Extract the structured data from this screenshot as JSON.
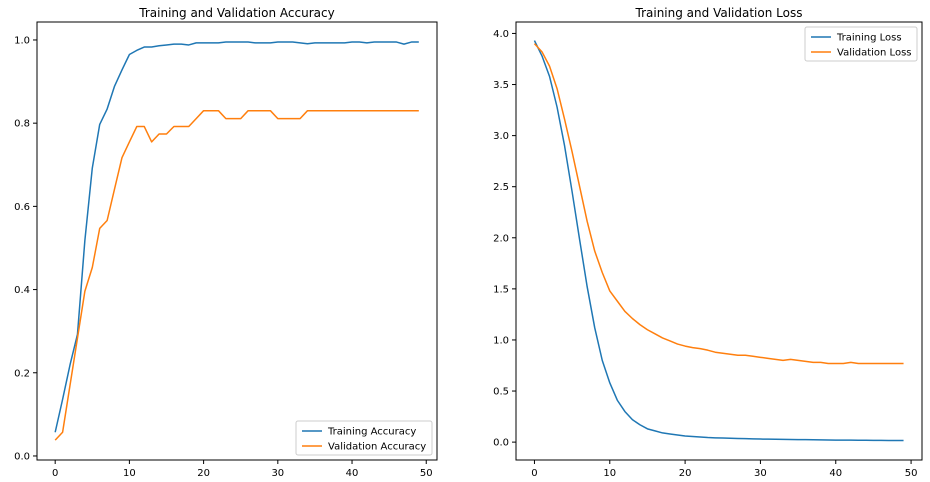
{
  "chart_data": [
    {
      "type": "line",
      "title": "Training and Validation Accuracy",
      "xlabel": "",
      "ylabel": "",
      "xlim": [
        -2.45,
        51.45
      ],
      "ylim": [
        -0.0097,
        1.0432
      ],
      "xticks": [
        0,
        10,
        20,
        30,
        40,
        50
      ],
      "yticks": [
        0.0,
        0.2,
        0.4,
        0.6,
        0.8,
        1.0
      ],
      "ytick_labels": [
        "0.0",
        "0.2",
        "0.4",
        "0.6",
        "0.8",
        "1.0"
      ],
      "grid": false,
      "legend_position": "lower-right",
      "x": [
        0,
        1,
        2,
        3,
        4,
        5,
        6,
        7,
        8,
        9,
        10,
        11,
        12,
        13,
        14,
        15,
        16,
        17,
        18,
        19,
        20,
        21,
        22,
        23,
        24,
        25,
        26,
        27,
        28,
        29,
        30,
        31,
        32,
        33,
        34,
        35,
        36,
        37,
        38,
        39,
        40,
        41,
        42,
        43,
        44,
        45,
        46,
        47,
        48,
        49
      ],
      "series": [
        {
          "name": "Training Accuracy",
          "color": "#1f77b4",
          "values": [
            0.057,
            0.136,
            0.219,
            0.292,
            0.518,
            0.692,
            0.797,
            0.834,
            0.889,
            0.928,
            0.965,
            0.975,
            0.983,
            0.983,
            0.986,
            0.988,
            0.99,
            0.99,
            0.988,
            0.993,
            0.993,
            0.993,
            0.993,
            0.995,
            0.995,
            0.995,
            0.995,
            0.993,
            0.993,
            0.993,
            0.995,
            0.995,
            0.995,
            0.993,
            0.991,
            0.993,
            0.993,
            0.993,
            0.993,
            0.993,
            0.995,
            0.995,
            0.993,
            0.995,
            0.995,
            0.995,
            0.995,
            0.99,
            0.995,
            0.995
          ]
        },
        {
          "name": "Validation Accuracy",
          "color": "#ff7f0e",
          "values": [
            0.038,
            0.057,
            0.17,
            0.283,
            0.396,
            0.453,
            0.547,
            0.566,
            0.642,
            0.717,
            0.755,
            0.792,
            0.792,
            0.755,
            0.774,
            0.774,
            0.792,
            0.792,
            0.792,
            0.811,
            0.83,
            0.83,
            0.83,
            0.811,
            0.811,
            0.811,
            0.83,
            0.83,
            0.83,
            0.83,
            0.811,
            0.811,
            0.811,
            0.811,
            0.83,
            0.83,
            0.83,
            0.83,
            0.83,
            0.83,
            0.83,
            0.83,
            0.83,
            0.83,
            0.83,
            0.83,
            0.83,
            0.83,
            0.83,
            0.83
          ]
        }
      ]
    },
    {
      "type": "line",
      "title": "Training and Validation Loss",
      "xlabel": "",
      "ylabel": "",
      "xlim": [
        -2.45,
        51.45
      ],
      "ylim": [
        -0.175,
        4.112
      ],
      "xticks": [
        0,
        10,
        20,
        30,
        40,
        50
      ],
      "yticks": [
        0.0,
        0.5,
        1.0,
        1.5,
        2.0,
        2.5,
        3.0,
        3.5,
        4.0
      ],
      "ytick_labels": [
        "0.0",
        "0.5",
        "1.0",
        "1.5",
        "2.0",
        "2.5",
        "3.0",
        "3.5",
        "4.0"
      ],
      "grid": false,
      "legend_position": "upper-right",
      "x": [
        0,
        1,
        2,
        3,
        4,
        5,
        6,
        7,
        8,
        9,
        10,
        11,
        12,
        13,
        14,
        15,
        16,
        17,
        18,
        19,
        20,
        21,
        22,
        23,
        24,
        25,
        26,
        27,
        28,
        29,
        30,
        31,
        32,
        33,
        34,
        35,
        36,
        37,
        38,
        39,
        40,
        41,
        42,
        43,
        44,
        45,
        46,
        47,
        48,
        49
      ],
      "series": [
        {
          "name": "Training Loss",
          "color": "#1f77b4",
          "values": [
            3.93,
            3.78,
            3.58,
            3.28,
            2.9,
            2.45,
            1.98,
            1.52,
            1.12,
            0.8,
            0.58,
            0.41,
            0.3,
            0.22,
            0.17,
            0.13,
            0.11,
            0.09,
            0.08,
            0.07,
            0.06,
            0.055,
            0.05,
            0.045,
            0.042,
            0.04,
            0.038,
            0.036,
            0.034,
            0.032,
            0.03,
            0.029,
            0.028,
            0.027,
            0.026,
            0.025,
            0.024,
            0.023,
            0.022,
            0.021,
            0.02,
            0.02,
            0.019,
            0.018,
            0.018,
            0.017,
            0.017,
            0.016,
            0.016,
            0.016
          ]
        },
        {
          "name": "Validation Loss",
          "color": "#ff7f0e",
          "values": [
            3.9,
            3.82,
            3.68,
            3.46,
            3.16,
            2.84,
            2.5,
            2.16,
            1.87,
            1.66,
            1.48,
            1.38,
            1.28,
            1.21,
            1.15,
            1.1,
            1.06,
            1.02,
            0.99,
            0.96,
            0.94,
            0.925,
            0.915,
            0.9,
            0.88,
            0.87,
            0.86,
            0.85,
            0.85,
            0.84,
            0.83,
            0.82,
            0.81,
            0.8,
            0.81,
            0.8,
            0.79,
            0.78,
            0.78,
            0.77,
            0.77,
            0.77,
            0.78,
            0.77,
            0.77,
            0.77,
            0.77,
            0.77,
            0.77,
            0.77
          ]
        }
      ]
    }
  ]
}
